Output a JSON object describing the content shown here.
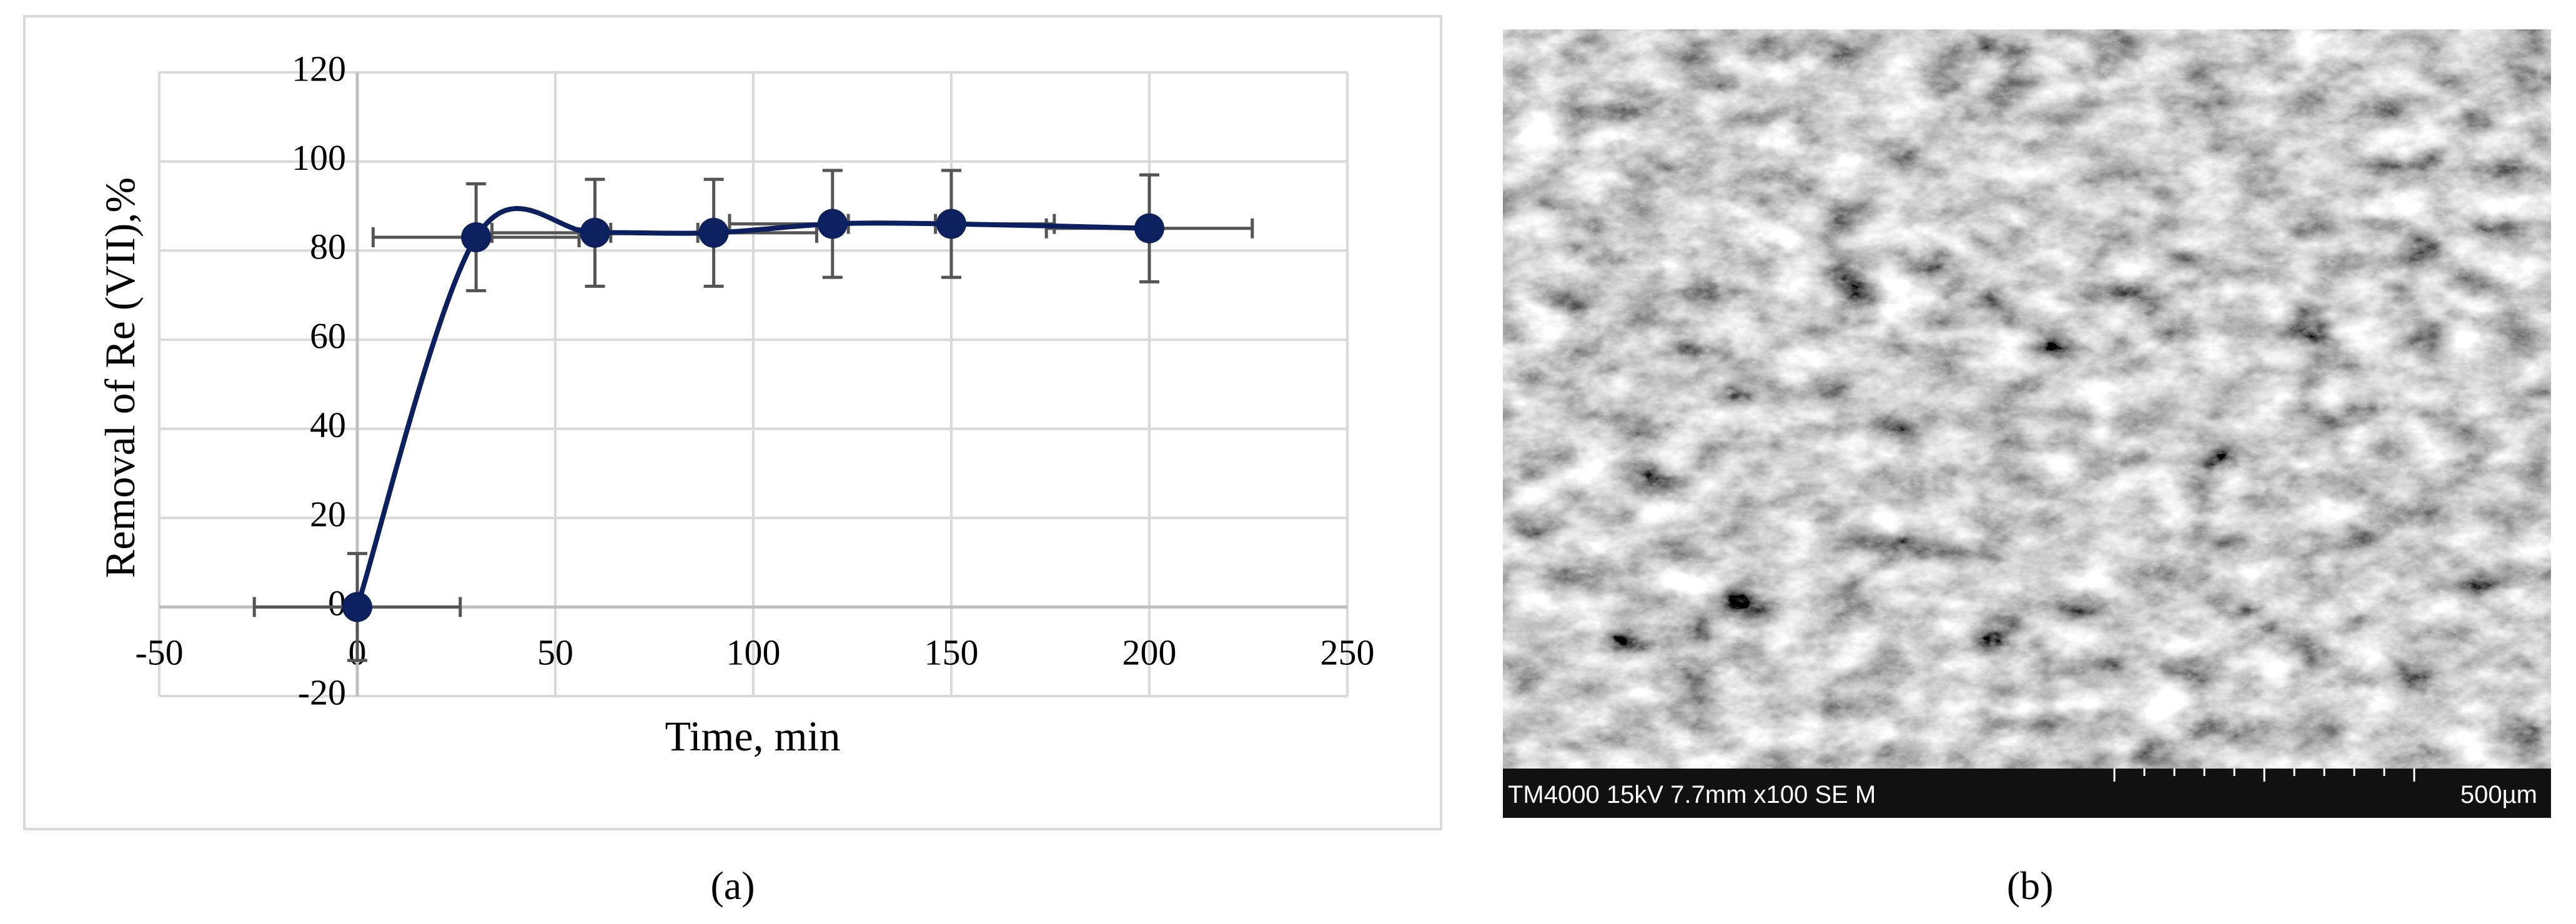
{
  "chart_data": {
    "type": "line",
    "x_label": "Time, min",
    "y_label": "Removal of Re (VII),%",
    "x": [
      0,
      30,
      60,
      90,
      120,
      150,
      200
    ],
    "series": [
      {
        "color": "#0c1f5e",
        "values": [
          0,
          83,
          84,
          84,
          86,
          86,
          85
        ],
        "error_y": [
          12,
          12,
          12,
          12,
          12,
          12,
          12
        ],
        "error_x": [
          26,
          26,
          26,
          26,
          26,
          26,
          26
        ]
      }
    ],
    "smooth": true,
    "xlim": [
      -50,
      250
    ],
    "xticks": [
      -50,
      0,
      50,
      100,
      150,
      200,
      250
    ],
    "ylim": [
      -20,
      120
    ],
    "yticks": [
      -20,
      0,
      20,
      40,
      60,
      80,
      100,
      120
    ],
    "grid": true
  },
  "image_b": {
    "info": "TM4000 15kV 7.7mm x100 SE M",
    "scale": "500µm"
  },
  "captions": [
    "(a)",
    "(b)"
  ]
}
